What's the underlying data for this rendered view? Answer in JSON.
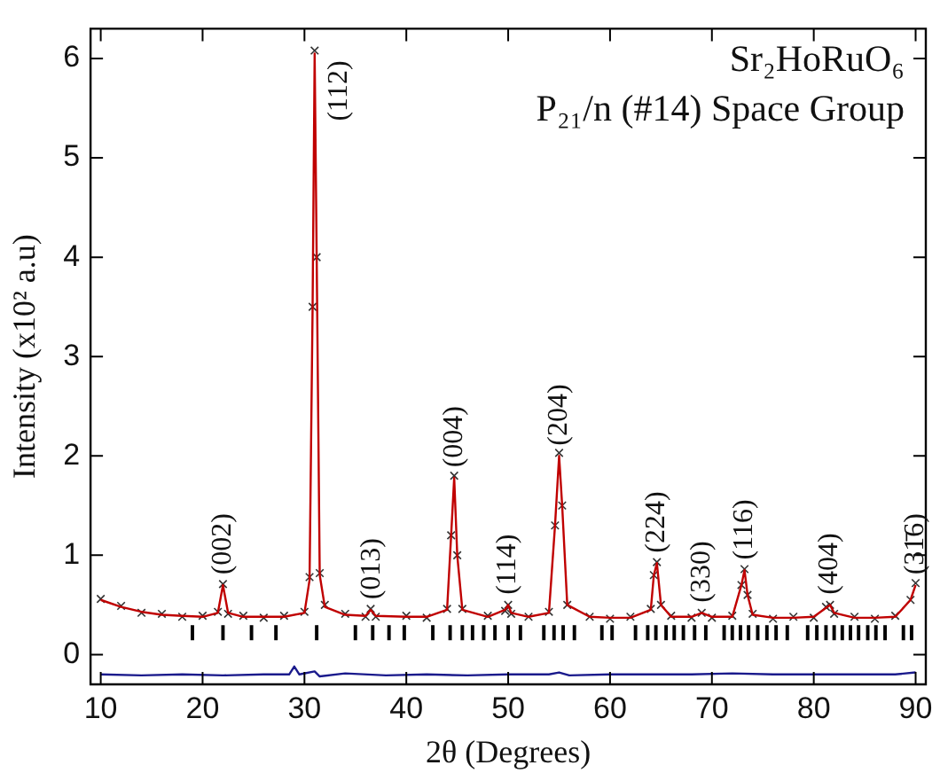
{
  "chart_data": {
    "type": "scatter",
    "xlabel": "2θ (Degrees)",
    "ylabel": "Intensity (x10² a.u)",
    "xlim": [
      9,
      91
    ],
    "ylim": [
      -0.3,
      6.3
    ],
    "xticks": [
      10,
      20,
      30,
      40,
      50,
      60,
      70,
      80,
      90
    ],
    "yticks": [
      0,
      1,
      2,
      3,
      4,
      5,
      6
    ],
    "grid": false,
    "legend": false,
    "x": [
      10,
      12,
      14,
      16,
      18,
      20,
      21.5,
      22,
      22.5,
      24,
      26,
      28,
      30,
      30.5,
      30.8,
      31,
      31.2,
      31.5,
      32,
      34,
      36,
      36.5,
      37,
      40,
      42,
      44,
      44.4,
      44.7,
      45,
      45.5,
      48,
      49.7,
      50,
      50.3,
      52,
      54,
      54.6,
      55,
      55.3,
      55.8,
      58,
      60,
      62,
      64,
      64.3,
      64.6,
      65,
      66,
      68,
      69,
      70,
      72,
      72.9,
      73.2,
      73.5,
      74,
      76,
      78,
      80,
      81.2,
      81.6,
      82,
      84,
      86,
      88,
      89.5,
      90
    ],
    "series": [
      {
        "marker": "cross",
        "color": "#333333",
        "values": [
          0.56,
          0.49,
          0.42,
          0.41,
          0.38,
          0.39,
          0.43,
          0.71,
          0.41,
          0.39,
          0.37,
          0.39,
          0.43,
          0.78,
          3.5,
          6.08,
          4.0,
          0.82,
          0.5,
          0.41,
          0.38,
          0.46,
          0.38,
          0.39,
          0.37,
          0.46,
          1.2,
          1.8,
          1.0,
          0.46,
          0.39,
          0.44,
          0.5,
          0.41,
          0.38,
          0.43,
          1.3,
          2.03,
          1.5,
          0.5,
          0.38,
          0.36,
          0.38,
          0.46,
          0.8,
          0.93,
          0.5,
          0.39,
          0.37,
          0.42,
          0.37,
          0.39,
          0.7,
          0.86,
          0.6,
          0.41,
          0.36,
          0.38,
          0.37,
          0.48,
          0.5,
          0.41,
          0.38,
          0.36,
          0.39,
          0.55,
          0.72
        ]
      },
      {
        "type": "line",
        "marker": "none",
        "color": "#c00000",
        "values": [
          0.55,
          0.48,
          0.43,
          0.4,
          0.39,
          0.38,
          0.42,
          0.7,
          0.42,
          0.38,
          0.38,
          0.38,
          0.42,
          0.75,
          3.5,
          6.05,
          4.0,
          0.8,
          0.48,
          0.4,
          0.39,
          0.45,
          0.39,
          0.38,
          0.38,
          0.45,
          1.2,
          1.78,
          1.0,
          0.45,
          0.38,
          0.45,
          0.5,
          0.42,
          0.38,
          0.42,
          1.3,
          2.0,
          1.5,
          0.5,
          0.38,
          0.37,
          0.37,
          0.45,
          0.8,
          0.92,
          0.5,
          0.38,
          0.38,
          0.42,
          0.38,
          0.38,
          0.7,
          0.85,
          0.6,
          0.4,
          0.37,
          0.37,
          0.38,
          0.47,
          0.5,
          0.42,
          0.37,
          0.37,
          0.38,
          0.55,
          0.7
        ]
      },
      {
        "type": "line",
        "marker": "none",
        "color": "#1a1a8c",
        "x": [
          10,
          14,
          18,
          22,
          26,
          28.5,
          29,
          29.5,
          31,
          31.5,
          34,
          38,
          42,
          46,
          50,
          54,
          55,
          56,
          60,
          64,
          68,
          72,
          76,
          80,
          84,
          88,
          90
        ],
        "values": [
          -0.2,
          -0.21,
          -0.2,
          -0.21,
          -0.2,
          -0.2,
          -0.12,
          -0.2,
          -0.17,
          -0.22,
          -0.19,
          -0.21,
          -0.2,
          -0.21,
          -0.2,
          -0.2,
          -0.18,
          -0.21,
          -0.2,
          -0.2,
          -0.2,
          -0.19,
          -0.2,
          -0.2,
          -0.2,
          -0.2,
          -0.18
        ]
      },
      {
        "type": "bar",
        "color": "#000000",
        "base": [
          0.15,
          0.15,
          0.15,
          0.15,
          0.15,
          0.15,
          0.15,
          0.15,
          0.15,
          0.15,
          0.15,
          0.15,
          0.15,
          0.15,
          0.15,
          0.15,
          0.15,
          0.15,
          0.15,
          0.15,
          0.15,
          0.15,
          0.15,
          0.15,
          0.15,
          0.15,
          0.15,
          0.15,
          0.15,
          0.15,
          0.15,
          0.15,
          0.15,
          0.15,
          0.15,
          0.15,
          0.15,
          0.15,
          0.15,
          0.15,
          0.15,
          0.15,
          0.15,
          0.15,
          0.15,
          0.15,
          0.15,
          0.15,
          0.15,
          0.15,
          0.15
        ],
        "x": [
          19,
          22,
          24.8,
          27.2,
          31.2,
          35,
          36.7,
          38.3,
          39.8,
          42.6,
          44.3,
          45.5,
          46.5,
          47.6,
          48.7,
          50,
          51.2,
          53.5,
          54.5,
          55.4,
          56.5,
          59.2,
          60.2,
          62.5,
          63.7,
          64.5,
          65.5,
          66.3,
          67.2,
          68.3,
          69.4,
          71.2,
          72,
          72.8,
          73.6,
          74.5,
          75.4,
          76.3,
          77.4,
          79.4,
          80.3,
          81.2,
          82,
          82.8,
          83.6,
          84.4,
          85.3,
          86.1,
          87,
          88.8,
          89.6
        ],
        "values": [
          0.14,
          0.14,
          0.14,
          0.14,
          0.14,
          0.14,
          0.14,
          0.14,
          0.14,
          0.14,
          0.14,
          0.14,
          0.14,
          0.14,
          0.14,
          0.14,
          0.14,
          0.14,
          0.14,
          0.14,
          0.14,
          0.14,
          0.14,
          0.14,
          0.14,
          0.14,
          0.14,
          0.14,
          0.14,
          0.14,
          0.14,
          0.14,
          0.14,
          0.14,
          0.14,
          0.14,
          0.14,
          0.14,
          0.14,
          0.14,
          0.14,
          0.14,
          0.14,
          0.14,
          0.14,
          0.14,
          0.14,
          0.14,
          0.14,
          0.14,
          0.14
        ]
      }
    ],
    "annotations": [
      "Sr₂HoRuO₆",
      "P₂₁/n (#14) Space Group",
      {
        "text": "(002)",
        "x": 22,
        "y": 0.75
      },
      {
        "text": "(112)",
        "x": 31,
        "y": 6.05
      },
      {
        "text": "(013)",
        "x": 36.6,
        "y": 0.5
      },
      {
        "text": "(004)",
        "x": 44.7,
        "y": 1.83
      },
      {
        "text": "(114)",
        "x": 50,
        "y": 0.55
      },
      {
        "text": "(204)",
        "x": 55,
        "y": 2.05
      },
      {
        "text": "(224)",
        "x": 64.6,
        "y": 0.97
      },
      {
        "text": "(330)",
        "x": 69,
        "y": 0.47
      },
      {
        "text": "(116)",
        "x": 73.2,
        "y": 0.9
      },
      {
        "text": "(404)",
        "x": 81.6,
        "y": 0.55
      },
      {
        "text": "(31̄6)",
        "x": 90,
        "y": 0.75
      }
    ]
  }
}
